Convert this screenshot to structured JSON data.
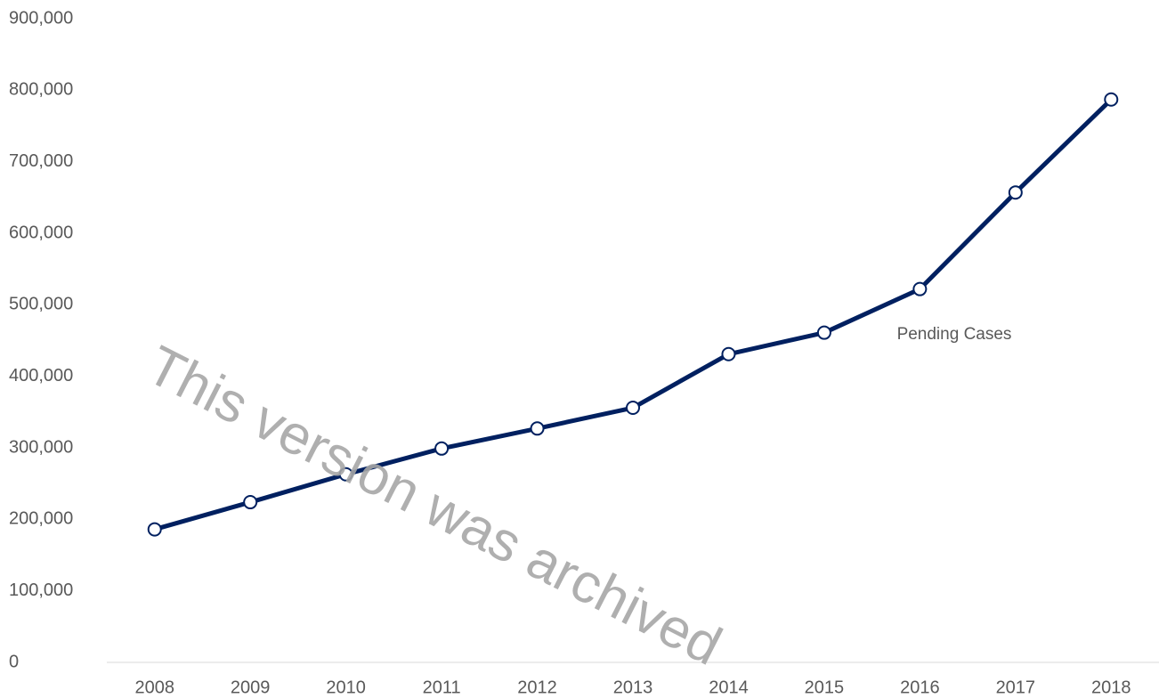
{
  "chart_data": {
    "type": "line",
    "categories": [
      "2008",
      "2009",
      "2010",
      "2011",
      "2012",
      "2013",
      "2014",
      "2015",
      "2016",
      "2017",
      "2018"
    ],
    "series": [
      {
        "name": "Pending Cases",
        "color": "#002060",
        "values": [
          186000,
          224000,
          263000,
          299000,
          327000,
          356000,
          431000,
          461000,
          522000,
          657000,
          787000
        ]
      }
    ],
    "ylim": [
      0,
      900000
    ],
    "yticks": [
      0,
      {
        "value": 100000,
        "label": "100,000"
      },
      {
        "value": 200000,
        "label": "200,000"
      },
      {
        "value": 300000,
        "label": "300,000"
      },
      {
        "value": 400000,
        "label": "400,000"
      },
      {
        "value": 500000,
        "label": "500,000"
      },
      {
        "value": 600000,
        "label": "600,000"
      },
      {
        "value": 700000,
        "label": "700,000"
      },
      {
        "value": 800000,
        "label": "800,000"
      },
      {
        "value": 900000,
        "label": "900,000"
      }
    ],
    "watermark": "This version was archived",
    "grid": false
  }
}
